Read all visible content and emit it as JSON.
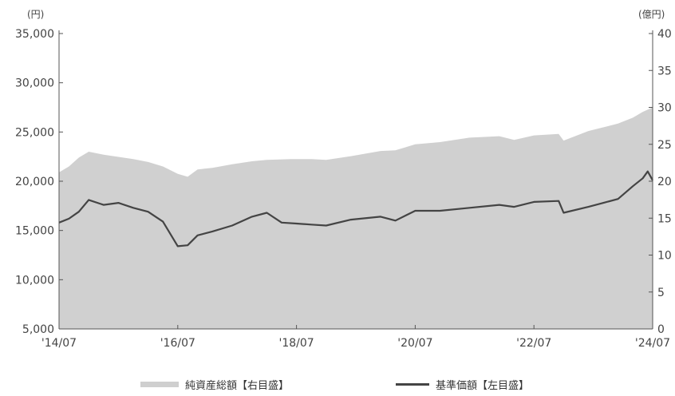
{
  "chart_data": {
    "type": "area+line",
    "x_ticks": [
      "'14/07",
      "'16/07",
      "'18/07",
      "'20/07",
      "'22/07",
      "'24/07"
    ],
    "x_range": [
      "2014-07",
      "2024-07"
    ],
    "left_axis": {
      "unit": "(円)",
      "range": [
        5000,
        35000
      ],
      "ticks": [
        5000,
        10000,
        15000,
        20000,
        25000,
        30000,
        35000
      ],
      "tick_labels": [
        "5,000",
        "10,000",
        "15,000",
        "20,000",
        "25,000",
        "30,000",
        "35,000"
      ]
    },
    "right_axis": {
      "unit": "(億円)",
      "range": [
        0,
        40
      ],
      "ticks": [
        0,
        5,
        10,
        15,
        20,
        25,
        30,
        35,
        40
      ],
      "tick_labels": [
        "0",
        "5",
        "10",
        "15",
        "20",
        "25",
        "30",
        "35",
        "40"
      ]
    },
    "series": [
      {
        "name": "純資産総額【右目盛】",
        "kind": "area",
        "axis": "right",
        "color": "#d0d0d0",
        "points": [
          [
            "2014-07",
            21.2
          ],
          [
            "2014-09",
            22.0
          ],
          [
            "2014-11",
            23.2
          ],
          [
            "2015-01",
            24.0
          ],
          [
            "2015-04",
            23.6
          ],
          [
            "2015-07",
            23.3
          ],
          [
            "2015-10",
            23.0
          ],
          [
            "2016-01",
            22.6
          ],
          [
            "2016-04",
            22.0
          ],
          [
            "2016-07",
            21.0
          ],
          [
            "2016-09",
            20.6
          ],
          [
            "2016-11",
            21.6
          ],
          [
            "2017-02",
            21.8
          ],
          [
            "2017-06",
            22.3
          ],
          [
            "2017-10",
            22.7
          ],
          [
            "2018-01",
            22.9
          ],
          [
            "2018-06",
            23.0
          ],
          [
            "2018-10",
            23.0
          ],
          [
            "2019-01",
            22.9
          ],
          [
            "2019-06",
            23.4
          ],
          [
            "2019-12",
            24.1
          ],
          [
            "2020-03",
            24.2
          ],
          [
            "2020-07",
            25.0
          ],
          [
            "2020-12",
            25.3
          ],
          [
            "2021-06",
            25.9
          ],
          [
            "2021-12",
            26.1
          ],
          [
            "2022-03",
            25.6
          ],
          [
            "2022-07",
            26.2
          ],
          [
            "2022-12",
            26.4
          ],
          [
            "2023-01",
            25.5
          ],
          [
            "2023-06",
            26.8
          ],
          [
            "2023-12",
            27.8
          ],
          [
            "2024-03",
            28.6
          ],
          [
            "2024-05",
            29.4
          ],
          [
            "2024-07",
            30.0
          ]
        ]
      },
      {
        "name": "基準価額【左目盛】",
        "kind": "line",
        "axis": "left",
        "color": "#444444",
        "points": [
          [
            "2014-07",
            15800
          ],
          [
            "2014-09",
            16200
          ],
          [
            "2014-11",
            16900
          ],
          [
            "2015-01",
            18100
          ],
          [
            "2015-04",
            17600
          ],
          [
            "2015-07",
            17800
          ],
          [
            "2015-10",
            17300
          ],
          [
            "2016-01",
            16900
          ],
          [
            "2016-04",
            15900
          ],
          [
            "2016-07",
            13400
          ],
          [
            "2016-09",
            13500
          ],
          [
            "2016-11",
            14500
          ],
          [
            "2017-02",
            14900
          ],
          [
            "2017-06",
            15500
          ],
          [
            "2017-10",
            16400
          ],
          [
            "2018-01",
            16800
          ],
          [
            "2018-04",
            15800
          ],
          [
            "2018-07",
            15700
          ],
          [
            "2018-10",
            15600
          ],
          [
            "2019-01",
            15500
          ],
          [
            "2019-06",
            16100
          ],
          [
            "2019-12",
            16400
          ],
          [
            "2020-03",
            16000
          ],
          [
            "2020-07",
            17000
          ],
          [
            "2020-12",
            17000
          ],
          [
            "2021-06",
            17300
          ],
          [
            "2021-12",
            17600
          ],
          [
            "2022-03",
            17400
          ],
          [
            "2022-07",
            17900
          ],
          [
            "2022-12",
            18000
          ],
          [
            "2023-01",
            16800
          ],
          [
            "2023-06",
            17400
          ],
          [
            "2023-12",
            18200
          ],
          [
            "2024-03",
            19500
          ],
          [
            "2024-05",
            20300
          ],
          [
            "2024-06",
            21000
          ],
          [
            "2024-07",
            20100
          ]
        ]
      }
    ],
    "legend_placement": "bottom"
  }
}
